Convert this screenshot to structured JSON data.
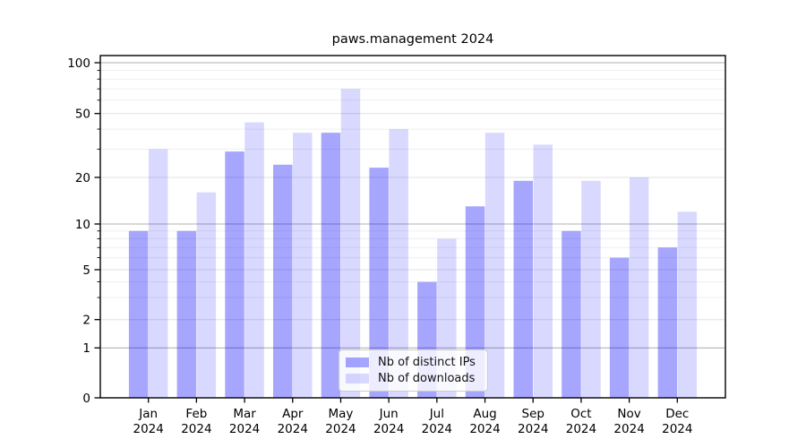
{
  "chart_data": {
    "type": "bar",
    "title": "paws.management 2024",
    "categories": [
      "Jan",
      "Feb",
      "Mar",
      "Apr",
      "May",
      "Jun",
      "Jul",
      "Aug",
      "Sep",
      "Oct",
      "Nov",
      "Dec"
    ],
    "category_year_label": "2024",
    "series": [
      {
        "name": "Nb of distinct IPs",
        "color": "rgba(0,0,255,0.35)",
        "values": [
          9,
          9,
          29,
          24,
          38,
          23,
          4,
          13,
          19,
          9,
          6,
          7
        ]
      },
      {
        "name": "Nb of downloads",
        "color": "rgba(0,0,255,0.15)",
        "values": [
          30,
          16,
          44,
          38,
          70,
          40,
          8,
          38,
          32,
          19,
          20,
          12
        ]
      }
    ],
    "yticks": [
      0,
      1,
      2,
      5,
      10,
      20,
      50,
      100
    ],
    "xlabel": "",
    "ylabel": "",
    "yscale": "log-like (linear below 1)",
    "ylim": [
      0,
      110
    ],
    "grid": true,
    "legend_position": "lower center",
    "colors": {
      "grid_decade": "#b2b2b2",
      "grid_submajor": "#e0e0e0",
      "grid_minor": "#efefef",
      "axis": "#000000",
      "background": "#ffffff"
    }
  }
}
